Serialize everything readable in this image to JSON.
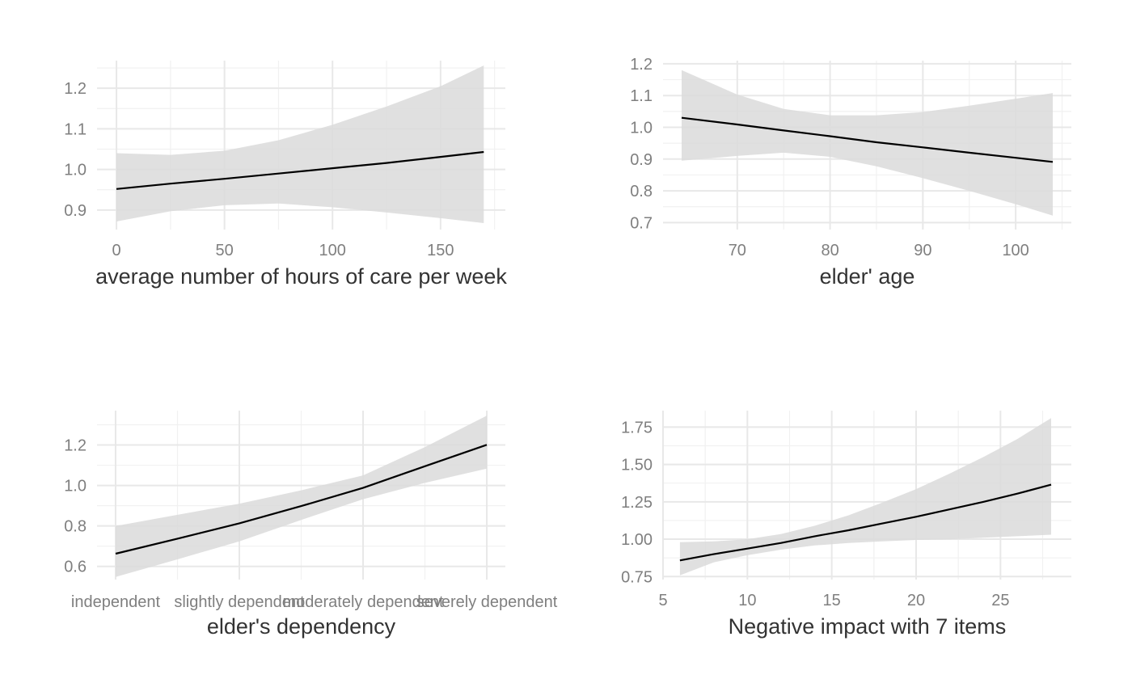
{
  "chart_data": [
    {
      "type": "line",
      "xlabel": "average number of hours of care per week",
      "ylabel": "",
      "xlim": [
        -9,
        180
      ],
      "ylim": [
        0.852,
        1.268
      ],
      "x_ticks": [
        0,
        50,
        100,
        150
      ],
      "x_tick_labels": [
        "0",
        "50",
        "100",
        "150"
      ],
      "y_ticks": [
        0.9,
        1.0,
        1.1,
        1.2
      ],
      "y_tick_labels": [
        "0.9",
        "1.0",
        "1.1",
        "1.2"
      ],
      "grid": true,
      "series": [
        {
          "x": [
            0,
            25,
            50,
            75,
            100,
            125,
            150,
            170
          ],
          "y": [
            0.952,
            0.965,
            0.977,
            0.99,
            1.003,
            1.016,
            1.031,
            1.043
          ],
          "lower": [
            0.872,
            0.897,
            0.912,
            0.916,
            0.907,
            0.894,
            0.88,
            0.868
          ],
          "upper": [
            1.04,
            1.036,
            1.046,
            1.072,
            1.11,
            1.155,
            1.205,
            1.256
          ]
        }
      ]
    },
    {
      "type": "line",
      "xlabel": "elder' age",
      "ylabel": "",
      "xlim": [
        62,
        106
      ],
      "ylim": [
        0.678,
        1.21
      ],
      "x_ticks": [
        70,
        80,
        90,
        100
      ],
      "x_tick_labels": [
        "70",
        "80",
        "90",
        "100"
      ],
      "y_ticks": [
        0.7,
        0.8,
        0.9,
        1.0,
        1.1,
        1.2
      ],
      "y_tick_labels": [
        "0.7",
        "0.8",
        "0.9",
        "1.0",
        "1.1",
        "1.2"
      ],
      "grid": true,
      "series": [
        {
          "x": [
            64,
            70,
            75,
            80,
            85,
            90,
            95,
            100,
            104
          ],
          "y": [
            1.03,
            1.009,
            0.99,
            0.972,
            0.953,
            0.937,
            0.92,
            0.904,
            0.891
          ],
          "lower": [
            0.895,
            0.91,
            0.92,
            0.907,
            0.877,
            0.84,
            0.8,
            0.758,
            0.722
          ],
          "upper": [
            1.18,
            1.103,
            1.058,
            1.038,
            1.038,
            1.048,
            1.068,
            1.09,
            1.108
          ]
        }
      ]
    },
    {
      "type": "line",
      "xlabel": "elder's dependency",
      "ylabel": "",
      "xlim": [
        0.85,
        4.15
      ],
      "ylim": [
        0.535,
        1.37
      ],
      "x_ticks": [
        1,
        2,
        3,
        4
      ],
      "x_tick_labels": [
        "independent",
        "slightly dependent",
        "moderately dependent",
        "severely dependent"
      ],
      "y_ticks": [
        0.6,
        0.8,
        1.0,
        1.2
      ],
      "y_tick_labels": [
        "0.6",
        "0.8",
        "1.0",
        "1.2"
      ],
      "grid": true,
      "series": [
        {
          "x": [
            1,
            1.5,
            2,
            2.5,
            3,
            3.5,
            4
          ],
          "y": [
            0.663,
            0.737,
            0.813,
            0.898,
            0.988,
            1.095,
            1.201
          ],
          "lower": [
            0.548,
            0.635,
            0.724,
            0.83,
            0.932,
            1.013,
            1.083
          ],
          "upper": [
            0.8,
            0.855,
            0.91,
            0.976,
            1.05,
            1.19,
            1.345
          ]
        }
      ]
    },
    {
      "type": "line",
      "xlabel": "Negative impact with 7 items",
      "ylabel": "",
      "xlim": [
        5,
        29.2
      ],
      "ylim": [
        0.73,
        1.86
      ],
      "x_ticks": [
        5,
        10,
        15,
        20,
        25
      ],
      "x_tick_labels": [
        "5",
        "10",
        "15",
        "20",
        "25"
      ],
      "y_ticks": [
        0.75,
        1.0,
        1.25,
        1.5,
        1.75
      ],
      "y_tick_labels": [
        "0.75",
        "1.00",
        "1.25",
        "1.50",
        "1.75"
      ],
      "grid": true,
      "series": [
        {
          "x": [
            6,
            8,
            10,
            12,
            14,
            16,
            18,
            20,
            22,
            24,
            26,
            28
          ],
          "y": [
            0.858,
            0.9,
            0.937,
            0.975,
            1.02,
            1.06,
            1.105,
            1.15,
            1.2,
            1.25,
            1.305,
            1.365
          ],
          "lower": [
            0.758,
            0.845,
            0.893,
            0.93,
            0.958,
            0.975,
            0.985,
            0.995,
            1.0,
            1.01,
            1.02,
            1.03
          ],
          "upper": [
            0.98,
            0.985,
            1.0,
            1.035,
            1.09,
            1.16,
            1.245,
            1.335,
            1.44,
            1.55,
            1.67,
            1.81
          ]
        }
      ]
    }
  ]
}
